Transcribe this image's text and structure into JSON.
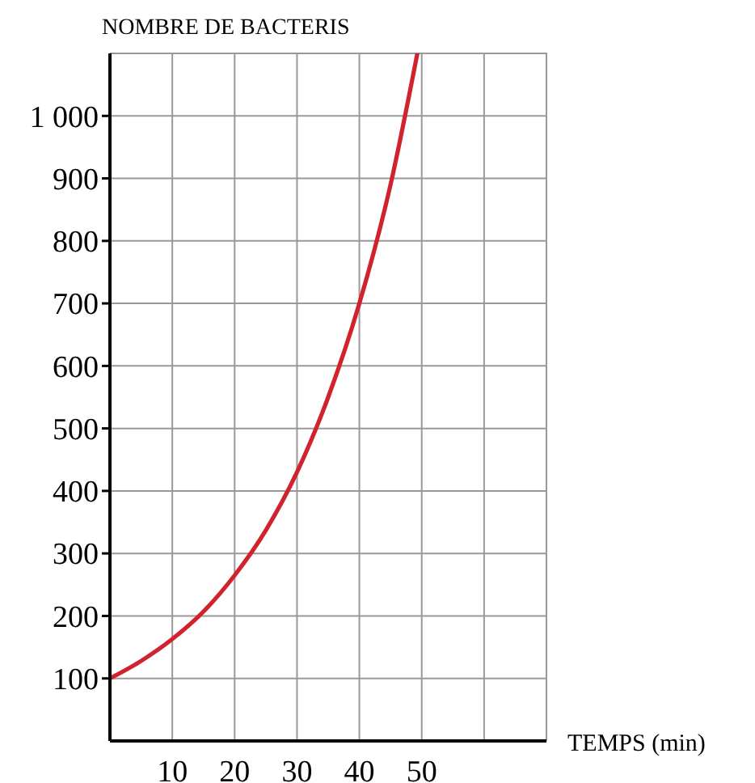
{
  "chart_data": {
    "type": "line",
    "ylabel": "NOMBRE DE BACTERIS",
    "xlabel": "TEMPS (min)",
    "xlim": [
      0,
      70
    ],
    "xticks": [
      10,
      20,
      30,
      40,
      50,
      {
        "value": 60,
        "label": null
      }
    ],
    "ylim": [
      0,
      1100
    ],
    "yticks": [
      100,
      200,
      300,
      400,
      500,
      600,
      700,
      800,
      900,
      {
        "value": 1000,
        "label": "1 000"
      }
    ],
    "grid": true,
    "marker": "none",
    "line_style": "solid",
    "series": [
      {
        "color": "#d0232d",
        "x": [
          0,
          5,
          10,
          15,
          20,
          25,
          30,
          35,
          40,
          45,
          49.3
        ],
        "values": [
          100,
          128,
          163,
          207,
          265,
          337,
          430,
          550,
          700,
          890,
          1100
        ]
      }
    ]
  }
}
